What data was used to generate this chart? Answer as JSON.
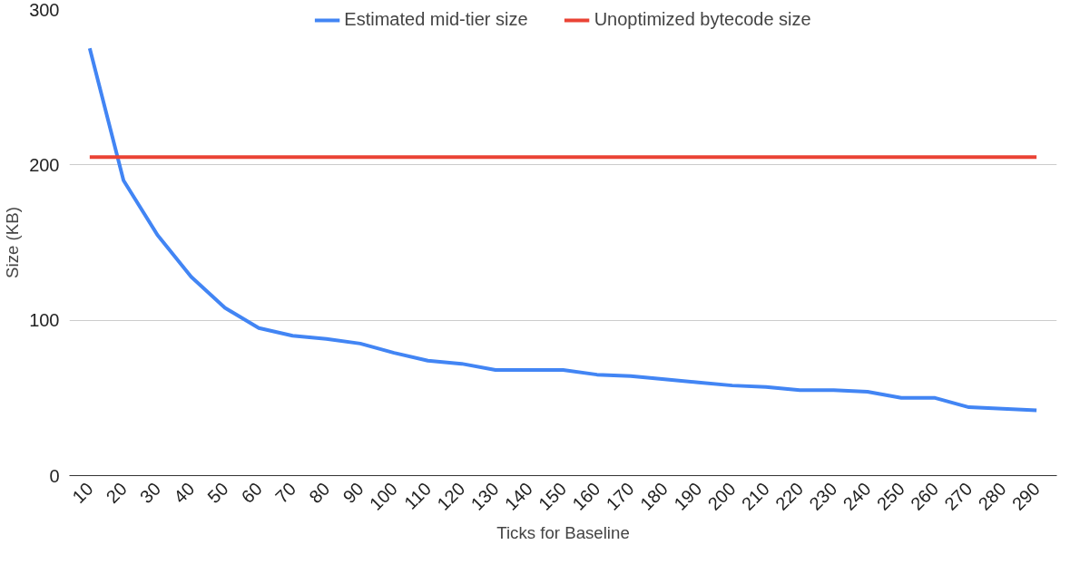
{
  "chart_data": {
    "type": "line",
    "xlabel": "Ticks for Baseline",
    "ylabel": "Size (KB)",
    "categories": [
      "10",
      "20",
      "30",
      "40",
      "50",
      "60",
      "70",
      "80",
      "90",
      "100",
      "110",
      "120",
      "130",
      "140",
      "150",
      "160",
      "170",
      "180",
      "190",
      "200",
      "210",
      "220",
      "230",
      "240",
      "250",
      "260",
      "270",
      "280",
      "290"
    ],
    "series": [
      {
        "name": "Estimated mid-tier size",
        "color": "#4285f4",
        "values": [
          275,
          190,
          155,
          128,
          108,
          95,
          90,
          88,
          85,
          79,
          74,
          72,
          68,
          68,
          68,
          65,
          64,
          62,
          60,
          58,
          57,
          55,
          55,
          54,
          50,
          50,
          44,
          43,
          42
        ]
      },
      {
        "name": "Unoptimized bytecode size",
        "color": "#ea4335",
        "values": [
          205,
          205,
          205,
          205,
          205,
          205,
          205,
          205,
          205,
          205,
          205,
          205,
          205,
          205,
          205,
          205,
          205,
          205,
          205,
          205,
          205,
          205,
          205,
          205,
          205,
          205,
          205,
          205,
          205
        ]
      }
    ],
    "ylim": [
      0,
      300
    ],
    "yticks": [
      0,
      100,
      200,
      300
    ],
    "grid": "y",
    "legend": "top",
    "marker": "none",
    "line_style": "solid"
  }
}
